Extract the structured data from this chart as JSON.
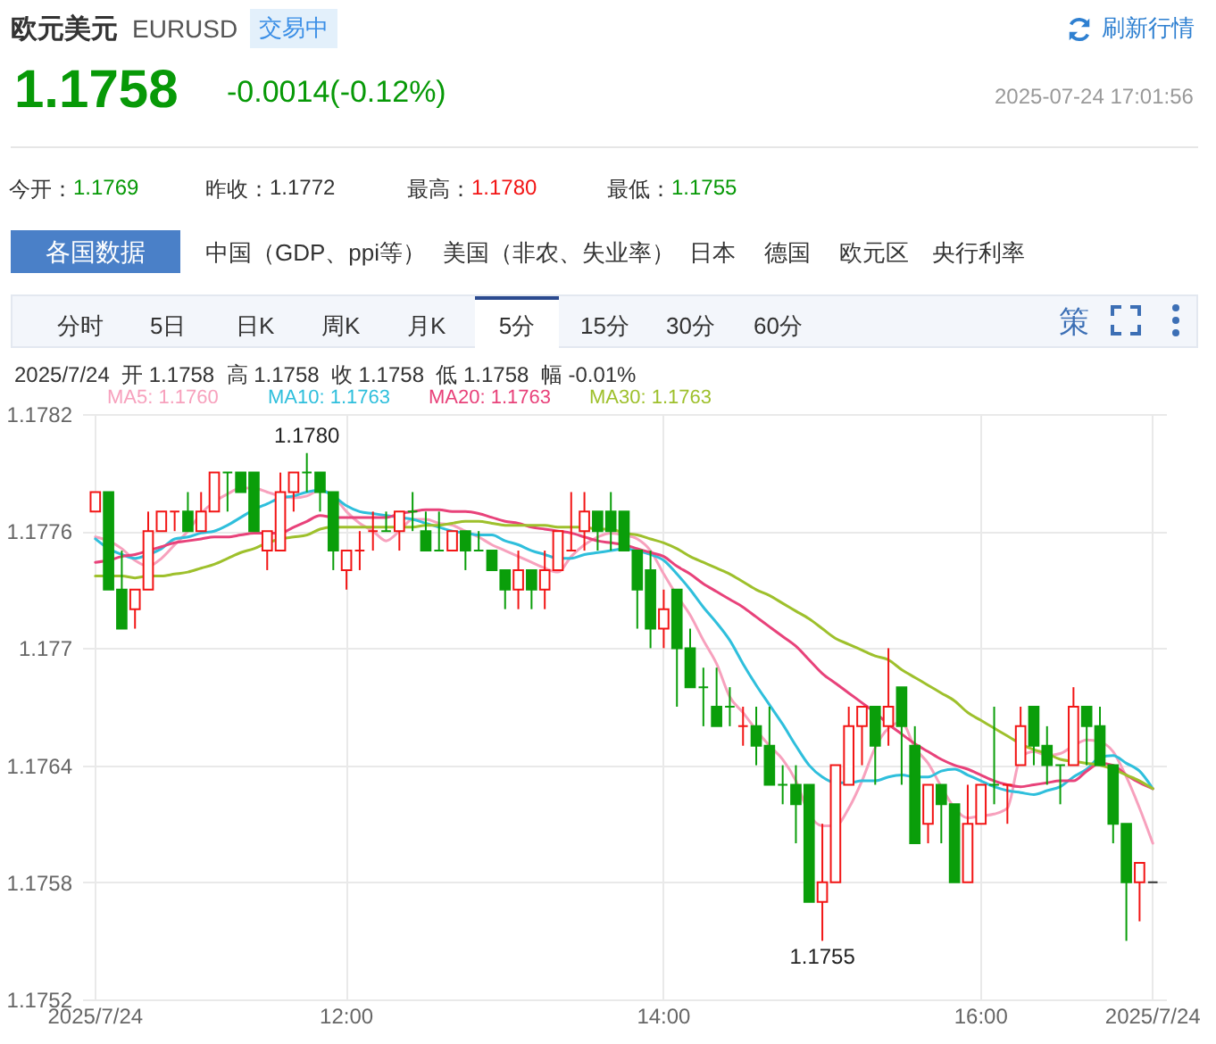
{
  "chart_data": {
    "type": "candlestick",
    "title": "欧元美元",
    "subtitle": "EURUSD",
    "categories": [
      "2025/7/24",
      null,
      null,
      null,
      null,
      null,
      null,
      null,
      null,
      null,
      null,
      null,
      null,
      null,
      null,
      null,
      null,
      null,
      null,
      "12:00",
      null,
      null,
      null,
      null,
      null,
      null,
      null,
      null,
      null,
      null,
      null,
      null,
      null,
      null,
      null,
      null,
      null,
      null,
      null,
      null,
      null,
      null,
      null,
      "14:00",
      null,
      null,
      null,
      null,
      null,
      null,
      null,
      null,
      null,
      null,
      null,
      null,
      null,
      null,
      null,
      null,
      null,
      null,
      null,
      null,
      null,
      null,
      null,
      "16:00",
      null,
      null,
      null,
      null,
      null,
      null,
      null,
      null,
      null,
      null,
      null,
      null,
      "2025/7/24"
    ],
    "ohlc": [
      [
        1.1777,
        1.1778,
        1.1777,
        1.1778
      ],
      [
        1.1778,
        1.1778,
        1.1773,
        1.1773
      ],
      [
        1.1773,
        1.1775,
        1.1771,
        1.1771
      ],
      [
        1.1772,
        1.1773,
        1.1771,
        1.1773
      ],
      [
        1.1773,
        1.1777,
        1.1773,
        1.1776
      ],
      [
        1.1776,
        1.1777,
        1.1776,
        1.1777
      ],
      [
        1.1777,
        1.1777,
        1.1776,
        1.1777
      ],
      [
        1.1777,
        1.1778,
        1.1776,
        1.1776
      ],
      [
        1.1776,
        1.1778,
        1.1776,
        1.1777
      ],
      [
        1.1777,
        1.1779,
        1.1777,
        1.1779
      ],
      [
        1.1779,
        1.1779,
        1.1777,
        1.1779
      ],
      [
        1.1779,
        1.1779,
        1.1778,
        1.1778
      ],
      [
        1.1779,
        1.1779,
        1.1776,
        1.1776
      ],
      [
        1.1775,
        1.1776,
        1.1774,
        1.1776
      ],
      [
        1.1775,
        1.1779,
        1.1775,
        1.1778
      ],
      [
        1.1778,
        1.1779,
        1.1777,
        1.1779
      ],
      [
        1.1779,
        1.178,
        1.1778,
        1.1779
      ],
      [
        1.1779,
        1.1779,
        1.1777,
        1.1778
      ],
      [
        1.1778,
        1.1778,
        1.1774,
        1.1775
      ],
      [
        1.1774,
        1.1775,
        1.1773,
        1.1775
      ],
      [
        1.1775,
        1.1776,
        1.1774,
        1.1775
      ],
      [
        1.1776,
        1.1777,
        1.1775,
        1.1776
      ],
      [
        1.1776,
        1.1777,
        1.1776,
        1.1776
      ],
      [
        1.1776,
        1.1777,
        1.1775,
        1.1777
      ],
      [
        1.1777,
        1.1778,
        1.1776,
        1.1777
      ],
      [
        1.1776,
        1.1777,
        1.1775,
        1.1775
      ],
      [
        1.1775,
        1.1777,
        1.1775,
        1.1775
      ],
      [
        1.1775,
        1.1776,
        1.1775,
        1.1776
      ],
      [
        1.1776,
        1.1776,
        1.1774,
        1.1775
      ],
      [
        1.1775,
        1.1776,
        1.1775,
        1.1775
      ],
      [
        1.1775,
        1.1775,
        1.1774,
        1.1774
      ],
      [
        1.1774,
        1.1774,
        1.1772,
        1.1773
      ],
      [
        1.1773,
        1.1775,
        1.1772,
        1.1774
      ],
      [
        1.1774,
        1.1774,
        1.1772,
        1.1773
      ],
      [
        1.1773,
        1.1775,
        1.1772,
        1.1774
      ],
      [
        1.1774,
        1.1776,
        1.1774,
        1.1776
      ],
      [
        1.1775,
        1.1778,
        1.1775,
        1.1775
      ],
      [
        1.1776,
        1.1778,
        1.1775,
        1.1777
      ],
      [
        1.1777,
        1.1777,
        1.1775,
        1.1776
      ],
      [
        1.1777,
        1.1778,
        1.1775,
        1.1776
      ],
      [
        1.1777,
        1.1777,
        1.1775,
        1.1775
      ],
      [
        1.1775,
        1.1775,
        1.1771,
        1.1773
      ],
      [
        1.1774,
        1.1775,
        1.177,
        1.1771
      ],
      [
        1.1771,
        1.1773,
        1.177,
        1.1772
      ],
      [
        1.1773,
        1.1773,
        1.1767,
        1.177
      ],
      [
        1.177,
        1.1771,
        1.1768,
        1.1768
      ],
      [
        1.1768,
        1.1769,
        1.1766,
        1.1768
      ],
      [
        1.1767,
        1.1769,
        1.1766,
        1.1766
      ],
      [
        1.1767,
        1.1768,
        1.1766,
        1.1767
      ],
      [
        1.1766,
        1.1767,
        1.1765,
        1.1766
      ],
      [
        1.1766,
        1.1767,
        1.1764,
        1.1765
      ],
      [
        1.1765,
        1.1767,
        1.1763,
        1.1763
      ],
      [
        1.1763,
        1.1764,
        1.1762,
        1.1763
      ],
      [
        1.1763,
        1.1764,
        1.176,
        1.1762
      ],
      [
        1.1763,
        1.1763,
        1.1757,
        1.1757
      ],
      [
        1.1757,
        1.1761,
        1.1755,
        1.1758
      ],
      [
        1.1758,
        1.1764,
        1.1758,
        1.1764
      ],
      [
        1.1763,
        1.1767,
        1.1763,
        1.1766
      ],
      [
        1.1766,
        1.1767,
        1.1764,
        1.1767
      ],
      [
        1.1767,
        1.1767,
        1.1763,
        1.1765
      ],
      [
        1.1766,
        1.177,
        1.1765,
        1.1767
      ],
      [
        1.1768,
        1.1768,
        1.1763,
        1.1766
      ],
      [
        1.1765,
        1.1766,
        1.176,
        1.176
      ],
      [
        1.1761,
        1.1763,
        1.176,
        1.1763
      ],
      [
        1.1763,
        1.1763,
        1.176,
        1.1762
      ],
      [
        1.1762,
        1.1762,
        1.1758,
        1.1758
      ],
      [
        1.1758,
        1.1763,
        1.1758,
        1.1761
      ],
      [
        1.1761,
        1.1763,
        1.1761,
        1.1763
      ],
      [
        1.1763,
        1.1767,
        1.1762,
        1.1763
      ],
      [
        1.1763,
        1.1763,
        1.1761,
        1.1763
      ],
      [
        1.1764,
        1.1767,
        1.1764,
        1.1766
      ],
      [
        1.1767,
        1.1767,
        1.1764,
        1.1765
      ],
      [
        1.1765,
        1.1766,
        1.1763,
        1.1764
      ],
      [
        1.1764,
        1.1764,
        1.1762,
        1.1764
      ],
      [
        1.1764,
        1.1768,
        1.1764,
        1.1767
      ],
      [
        1.1767,
        1.1767,
        1.1764,
        1.1766
      ],
      [
        1.1766,
        1.1767,
        1.1764,
        1.1764
      ],
      [
        1.1764,
        1.1764,
        1.176,
        1.1761
      ],
      [
        1.1761,
        1.1761,
        1.1755,
        1.1758
      ],
      [
        1.1758,
        1.1759,
        1.1756,
        1.1759
      ],
      [
        1.1758,
        1.1758,
        1.1758,
        1.1758
      ]
    ],
    "colors": [
      "#f21515",
      "#0a9e0a",
      "#0a9e0a",
      "#f21515",
      "#f21515",
      "#f21515",
      "#f21515",
      "#0a9e0a",
      "#f21515",
      "#f21515",
      "#0a9e0a",
      "#0a9e0a",
      "#0a9e0a",
      "#f21515",
      "#f21515",
      "#f21515",
      "#0a9e0a",
      "#0a9e0a",
      "#0a9e0a",
      "#f21515",
      "#f21515",
      "#f21515",
      "#0a9e0a",
      "#f21515",
      "#0a9e0a",
      "#0a9e0a",
      "#0a9e0a",
      "#f21515",
      "#0a9e0a",
      "#0a9e0a",
      "#0a9e0a",
      "#0a9e0a",
      "#f21515",
      "#0a9e0a",
      "#f21515",
      "#f21515",
      "#f21515",
      "#f21515",
      "#0a9e0a",
      "#0a9e0a",
      "#0a9e0a",
      "#0a9e0a",
      "#0a9e0a",
      "#f21515",
      "#0a9e0a",
      "#0a9e0a",
      "#0a9e0a",
      "#0a9e0a",
      "#0a9e0a",
      "#f21515",
      "#0a9e0a",
      "#0a9e0a",
      "#0a9e0a",
      "#0a9e0a",
      "#0a9e0a",
      "#f21515",
      "#f21515",
      "#f21515",
      "#f21515",
      "#0a9e0a",
      "#f21515",
      "#0a9e0a",
      "#0a9e0a",
      "#f21515",
      "#0a9e0a",
      "#0a9e0a",
      "#f21515",
      "#f21515",
      "#0a9e0a",
      "#f21515",
      "#f21515",
      "#0a9e0a",
      "#0a9e0a",
      "#0a9e0a",
      "#f21515",
      "#0a9e0a",
      "#0a9e0a",
      "#0a9e0a",
      "#0a9e0a",
      "#f21515",
      "#333333"
    ],
    "series": [
      {
        "type": "line",
        "name": "MA5: 1.1760",
        "color": "#f7a1bd",
        "values": [
          1.17757,
          1.17755,
          1.17751,
          1.17745,
          1.17742,
          1.17746,
          1.17753,
          1.1776,
          1.17769,
          1.17775,
          1.17779,
          1.17782,
          1.17782,
          1.1778,
          1.17778,
          1.17777,
          1.17778,
          1.17781,
          1.17778,
          1.1777,
          1.17764,
          1.1776,
          1.17755,
          1.1776,
          1.17766,
          1.17766,
          1.17764,
          1.17763,
          1.1776,
          1.17757,
          1.17753,
          1.1775,
          1.17747,
          1.17744,
          1.17741,
          1.17739,
          1.17747,
          1.17753,
          1.17757,
          1.17759,
          1.17758,
          1.17756,
          1.1775,
          1.17738,
          1.17727,
          1.17717,
          1.17704,
          1.17692,
          1.17675,
          1.17667,
          1.17658,
          1.1765,
          1.17643,
          1.17632,
          1.17615,
          1.17609,
          1.17609,
          1.17618,
          1.17632,
          1.17649,
          1.17659,
          1.17662,
          1.17649,
          1.17641,
          1.17629,
          1.17618,
          1.17613,
          1.17614,
          1.17615,
          1.17618,
          1.17644,
          1.17647,
          1.17645,
          1.17646,
          1.1765,
          1.17653,
          1.17652,
          1.17647,
          1.17634,
          1.17618,
          1.176
        ]
      },
      {
        "type": "line",
        "name": "MA10: 1.1763",
        "color": "#2fbfdc",
        "values": [
          1.17756,
          1.17751,
          1.17748,
          1.17746,
          1.17748,
          1.17751,
          1.17756,
          1.17757,
          1.17759,
          1.1776,
          1.17763,
          1.17767,
          1.17771,
          1.17774,
          1.17777,
          1.17778,
          1.1778,
          1.17781,
          1.17778,
          1.17773,
          1.1777,
          1.17769,
          1.17768,
          1.17767,
          1.17766,
          1.17764,
          1.17762,
          1.1776,
          1.17759,
          1.17758,
          1.17758,
          1.17755,
          1.17753,
          1.1775,
          1.17748,
          1.17746,
          1.17746,
          1.17748,
          1.17749,
          1.1775,
          1.17751,
          1.1775,
          1.17748,
          1.17745,
          1.17738,
          1.1773,
          1.17721,
          1.17713,
          1.17704,
          1.17692,
          1.17681,
          1.17671,
          1.17661,
          1.1765,
          1.1764,
          1.17634,
          1.17631,
          1.17631,
          1.17632,
          1.17632,
          1.17634,
          1.17635,
          1.17634,
          1.17634,
          1.17637,
          1.17638,
          1.17635,
          1.17632,
          1.17629,
          1.17627,
          1.17626,
          1.17625,
          1.17627,
          1.17629,
          1.17634,
          1.17638,
          1.17644,
          1.17645,
          1.17641,
          1.17637,
          1.17628
        ]
      },
      {
        "type": "line",
        "name": "MA20: 1.1763",
        "color": "#e8427a",
        "values": [
          1.17744,
          1.17745,
          1.17747,
          1.17748,
          1.1775,
          1.17752,
          1.17754,
          1.17755,
          1.17756,
          1.17757,
          1.17757,
          1.17758,
          1.17759,
          1.17759,
          1.17759,
          1.17762,
          1.17765,
          1.17768,
          1.17767,
          1.17767,
          1.17767,
          1.17767,
          1.17767,
          1.17769,
          1.1777,
          1.17771,
          1.17771,
          1.1777,
          1.1777,
          1.17769,
          1.17767,
          1.17765,
          1.17764,
          1.17762,
          1.17761,
          1.1776,
          1.17759,
          1.17757,
          1.17755,
          1.17754,
          1.17753,
          1.17751,
          1.17749,
          1.17747,
          1.17742,
          1.17738,
          1.17733,
          1.17729,
          1.17725,
          1.17721,
          1.17716,
          1.17711,
          1.17706,
          1.17701,
          1.17694,
          1.17687,
          1.17682,
          1.17677,
          1.17672,
          1.17667,
          1.17661,
          1.17656,
          1.17651,
          1.17647,
          1.17643,
          1.1764,
          1.17638,
          1.17635,
          1.17632,
          1.1763,
          1.17629,
          1.1763,
          1.17631,
          1.17632,
          1.17632,
          1.17637,
          1.17641,
          1.1764,
          1.17635,
          1.17631,
          1.17628
        ]
      },
      {
        "type": "line",
        "name": "MA30: 1.1763",
        "color": "#9ec02c",
        "values": [
          1.17737,
          1.17737,
          1.17737,
          1.17736,
          1.17737,
          1.17737,
          1.17738,
          1.17739,
          1.17741,
          1.17743,
          1.17746,
          1.17749,
          1.17751,
          1.17754,
          1.17756,
          1.17757,
          1.17758,
          1.17761,
          1.17762,
          1.17762,
          1.17762,
          1.17762,
          1.17762,
          1.17762,
          1.17762,
          1.17763,
          1.17763,
          1.17764,
          1.17765,
          1.17765,
          1.17764,
          1.17763,
          1.17763,
          1.17763,
          1.17763,
          1.17762,
          1.17762,
          1.17762,
          1.17761,
          1.17761,
          1.17759,
          1.17758,
          1.17756,
          1.17754,
          1.17751,
          1.17747,
          1.17744,
          1.17741,
          1.17738,
          1.17734,
          1.1773,
          1.17727,
          1.17723,
          1.17719,
          1.17715,
          1.1771,
          1.17705,
          1.17702,
          1.17699,
          1.17696,
          1.17694,
          1.17689,
          1.17685,
          1.17681,
          1.17677,
          1.17673,
          1.17667,
          1.17663,
          1.17659,
          1.17655,
          1.17651,
          1.17648,
          1.17646,
          1.17643,
          1.17642,
          1.17641,
          1.1764,
          1.17638,
          1.17635,
          1.17632,
          1.17628
        ]
      }
    ],
    "ylim": [
      1.1752,
      1.1782
    ],
    "yticks": [
      1.1752,
      1.1758,
      1.1764,
      1.177,
      1.1776,
      1.1782
    ],
    "grid": true,
    "legend": "top",
    "annotations": [
      "交易中",
      "刷新行情",
      "1.1758",
      "-0.0014(-0.12%)",
      "2025-07-24 17:01:56",
      "今开：",
      "1.1769",
      "昨收：",
      "1.1772",
      "最高：",
      "1.1780",
      "最低：",
      "1.1755",
      "各国数据",
      "中国（GDP、ppi等）",
      "美国（非农、失业率）",
      "日本",
      "德国",
      "欧元区",
      "央行利率",
      "分时",
      "5日",
      "日K",
      "周K",
      "月K",
      "5分",
      "15分",
      "30分",
      "60分",
      "策",
      "2025/7/24  开 1.1758  高 1.1758  收 1.1758  低 1.1758  幅 -0.01%",
      {
        "text": "1.1780",
        "y": 1.178
      },
      {
        "text": "1.1755",
        "y": 1.1755
      }
    ]
  }
}
